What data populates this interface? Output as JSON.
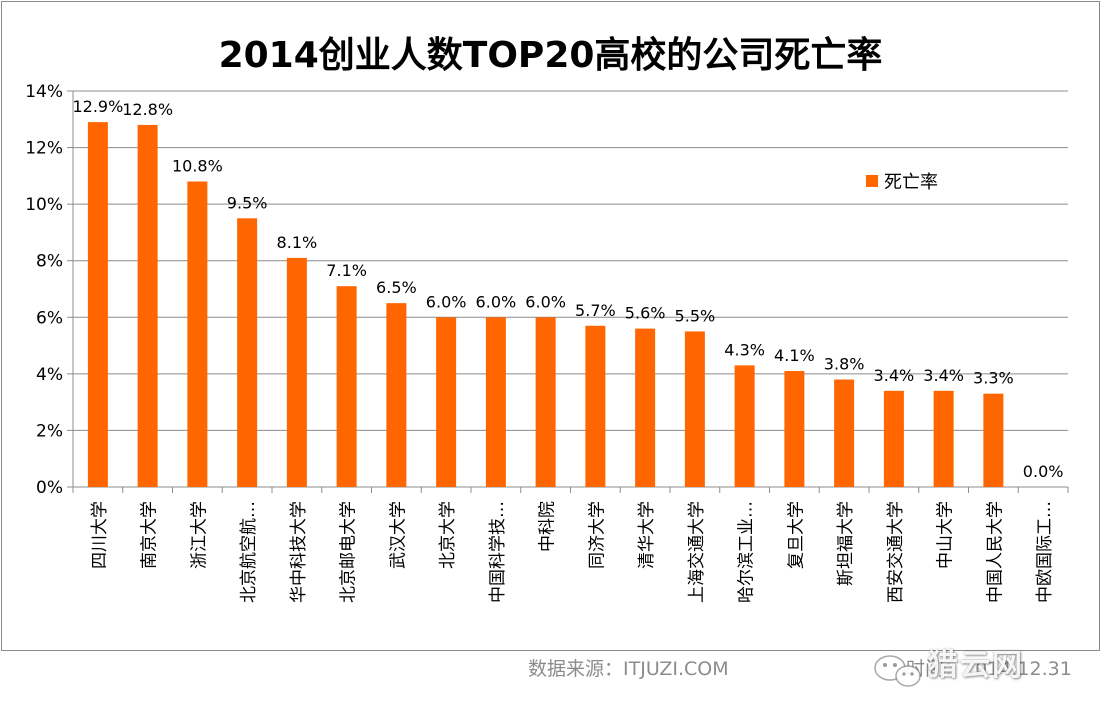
{
  "chart_data": {
    "type": "bar",
    "title": "2014创业人数TOP20高校的公司死亡率",
    "xlabel": "",
    "ylabel": "",
    "ylim": [
      0,
      14
    ],
    "yticks": [
      "0%",
      "2%",
      "4%",
      "6%",
      "8%",
      "10%",
      "12%",
      "14%"
    ],
    "grid": true,
    "legend_position": "right",
    "categories": [
      "四川大学",
      "南京大学",
      "浙江大学",
      "北京航空航…",
      "华中科技大学",
      "北京邮电大学",
      "武汉大学",
      "北京大学",
      "中国科学技…",
      "中科院",
      "同济大学",
      "清华大学",
      "上海交通大学",
      "哈尔滨工业…",
      "复旦大学",
      "斯坦福大学",
      "西安交通大学",
      "中山大学",
      "中国人民大学",
      "中欧国际工…"
    ],
    "series": [
      {
        "name": "死亡率",
        "color": "#FF6600",
        "values": [
          12.9,
          12.8,
          10.8,
          9.5,
          8.1,
          7.1,
          6.5,
          6.0,
          6.0,
          6.0,
          5.7,
          5.6,
          5.5,
          4.3,
          4.1,
          3.8,
          3.4,
          3.4,
          3.3,
          0.0
        ],
        "labels": [
          "12.9%",
          "12.8%",
          "10.8%",
          "9.5%",
          "8.1%",
          "7.1%",
          "6.5%",
          "6.0%",
          "6.0%",
          "6.0%",
          "5.7%",
          "5.6%",
          "5.5%",
          "4.3%",
          "4.1%",
          "3.8%",
          "3.4%",
          "3.4%",
          "3.3%",
          "0.0%"
        ]
      }
    ]
  },
  "footer": {
    "source": "数据来源：ITJUZI.COM",
    "date": "时间：2014.12.31",
    "watermark": "猎云网"
  }
}
